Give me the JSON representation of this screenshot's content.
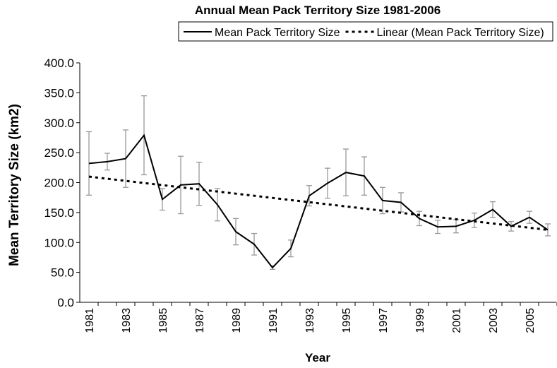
{
  "chart_data": {
    "type": "line",
    "title": "Annual Mean Pack Territory Size 1981-2006",
    "x_label": "Year",
    "y_label": "Mean Territory Size (km2)",
    "categories": [
      "1981",
      null,
      "1983",
      null,
      "1985",
      null,
      "1987",
      null,
      "1989",
      null,
      "1991",
      null,
      "1993",
      null,
      "1995",
      null,
      "1997",
      null,
      "1999",
      null,
      "2001",
      null,
      "2003",
      null,
      "2005",
      null
    ],
    "series": [
      {
        "name": "Mean Pack Territory Size",
        "color": "#000000",
        "dash": "solid",
        "values": [
          232,
          235,
          240,
          279,
          172,
          196,
          198,
          163,
          118,
          97,
          58,
          90,
          178,
          199,
          217,
          211,
          170,
          167,
          140,
          126,
          127,
          137,
          155,
          127,
          142,
          121
        ],
        "errors": [
          53,
          14,
          48,
          66,
          18,
          48,
          36,
          27,
          22,
          18,
          3,
          14,
          17,
          25,
          39,
          32,
          22,
          16,
          12,
          11,
          11,
          12,
          13,
          8,
          10,
          10
        ],
        "error_color": "#999999"
      },
      {
        "name": "Linear (Mean Pack Territory Size)",
        "color": "#000000",
        "dash": "dotted",
        "values": [
          210,
          206.4,
          202.9,
          199.3,
          195.8,
          192.2,
          188.6,
          185.1,
          181.5,
          178,
          174.4,
          170.8,
          167.3,
          163.7,
          160.2,
          156.6,
          153,
          149.5,
          145.9,
          142.4,
          138.8,
          135.2,
          131.7,
          128.1,
          124.6,
          121
        ]
      }
    ],
    "ylim": [
      0,
      400
    ],
    "yticks": [
      {
        "value": 0,
        "label": "0.0"
      },
      {
        "value": 50,
        "label": "50.0"
      },
      {
        "value": 100,
        "label": "100.0"
      },
      {
        "value": 150,
        "label": "150.0"
      },
      {
        "value": 200,
        "label": "200.0"
      },
      {
        "value": 250,
        "label": "250.0"
      },
      {
        "value": 300,
        "label": "300.0"
      },
      {
        "value": 350,
        "label": "350.0"
      },
      {
        "value": 400,
        "label": "400.0"
      }
    ],
    "legend": "top"
  }
}
